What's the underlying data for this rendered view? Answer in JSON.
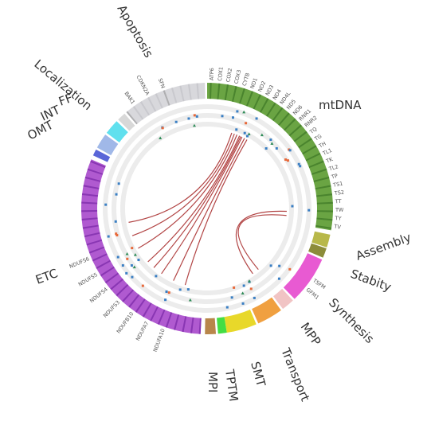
{
  "colors": {
    "mtdna": "#6aa443",
    "mtdna_dark": "#2f6a1e",
    "assembly": "#b8b84a",
    "stability": "#8c8c3a",
    "synthesis": "#e85ad2",
    "mpp": "#f1c4c4",
    "transport": "#f0a040",
    "smt": "#e8d82a",
    "tptm": "#f0f060",
    "tptm2": "#44dd44",
    "mpi": "#b8864a",
    "etc": "#b05ad0",
    "etc_dark": "#6a1a9a",
    "omt": "#5a66d8",
    "int": "#a0b8e8",
    "ff": "#60e0ee",
    "localization": "#d8d8d8",
    "apoptosis": "#d8d8dc",
    "link": "#a52525",
    "dot_blue": "#3a7fc4",
    "dot_orange": "#e8693a",
    "dot_green": "#2e8b57"
  },
  "categories": [
    {
      "id": "mtdna",
      "label": "mtDNA"
    },
    {
      "id": "assembly",
      "label": "Assembly"
    },
    {
      "id": "stability",
      "label": "Stabity"
    },
    {
      "id": "synthesis",
      "label": "Synthesis"
    },
    {
      "id": "mpp",
      "label": "MPP"
    },
    {
      "id": "transport",
      "label": "Transport"
    },
    {
      "id": "smt",
      "label": "SMT"
    },
    {
      "id": "tptm",
      "label": "TPTM"
    },
    {
      "id": "mpi",
      "label": "MPI"
    },
    {
      "id": "etc",
      "label": "ETC"
    },
    {
      "id": "omt",
      "label": "OMT"
    },
    {
      "id": "int",
      "label": "INT"
    },
    {
      "id": "ff",
      "label": "FF"
    },
    {
      "id": "localization",
      "label": "Localization"
    },
    {
      "id": "apoptosis",
      "label": "Apoptosis"
    }
  ],
  "genes": {
    "mtdna": [
      "ATP6",
      "COX1",
      "COX2",
      "COX3",
      "CYTB",
      "ND1",
      "ND2",
      "ND3",
      "ND4",
      "ND4L",
      "ND5",
      "ND6",
      "RNR1",
      "RNR2",
      "TQ",
      "TG",
      "TH",
      "TL1",
      "TK",
      "TL2",
      "TP",
      "TS1",
      "TS2",
      "TT",
      "TW",
      "TY",
      "TV"
    ],
    "synthesis": [
      "TSFM",
      "GFM1"
    ],
    "etc": [
      "NDUFS6",
      "NDUFS5",
      "NDUFS4",
      "NDUFS3",
      "NDUFB10",
      "NDUFA7",
      "NDUFA10"
    ],
    "apoptosis": [
      "SFN",
      "CDKN2A",
      "BAK1"
    ]
  }
}
